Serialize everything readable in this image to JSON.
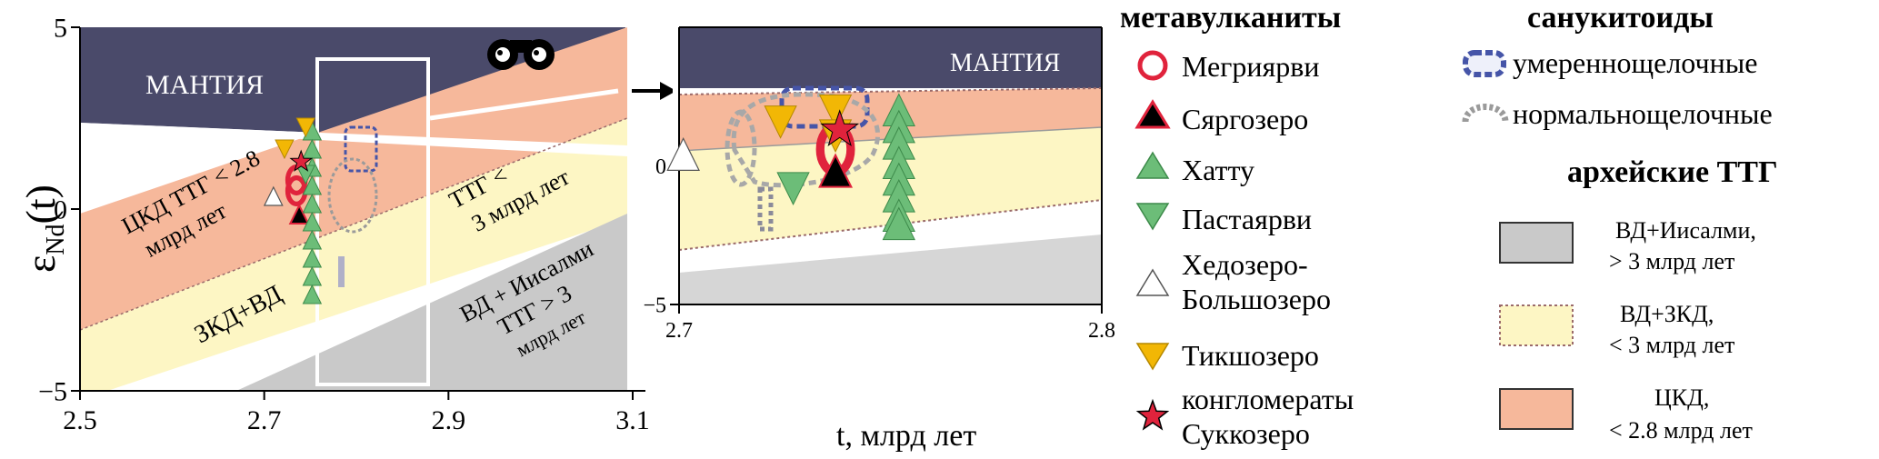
{
  "chart_data": [
    {
      "type": "scatter",
      "panel": "main",
      "title": "",
      "xlabel": "t, млрд лет",
      "ylabel": "ε",
      "ylabel_sub": "Nd",
      "ylabel_suffix": "(t)",
      "xlim": [
        2.5,
        3.1
      ],
      "ylim": [
        -5,
        5
      ],
      "xticks": [
        {
          "v": 2.5,
          "label": "2.5"
        },
        {
          "v": 2.7,
          "label": "2.7"
        },
        {
          "v": 2.9,
          "label": "2.9"
        },
        {
          "v": 3.1,
          "label": "3.1"
        }
      ],
      "yticks": [
        {
          "v": 5,
          "label": "5"
        },
        {
          "v": 0,
          "label": "0"
        },
        {
          "v": -5,
          "label": "−5"
        }
      ],
      "region_labels": [
        {
          "name": "mantle",
          "text": "МАНТИЯ"
        },
        {
          "name": "ckd",
          "line1": "ЦКД ТТГ < 2.8",
          "line2": "млрд лет"
        },
        {
          "name": "ttg3",
          "line1": "ТТГ <",
          "line2": "3 млрд лет"
        },
        {
          "name": "zkd",
          "text": "ЗКД+ВД"
        },
        {
          "name": "vd",
          "line1": "ВД + Иисалми",
          "line2": "ТТГ > 3",
          "line3": "млрд лет"
        }
      ],
      "series": [
        {
          "name": "Мегриярви",
          "symbol": "circle",
          "points": [
            [
              2.735,
              0.8
            ],
            [
              2.735,
              0.5
            ]
          ]
        },
        {
          "name": "Сяргозеро",
          "symbol": "triangle-up",
          "points": [
            [
              2.738,
              -0.2
            ]
          ]
        },
        {
          "name": "Хатту",
          "symbol": "triangle-up",
          "points": [
            [
              2.752,
              2.1
            ],
            [
              2.752,
              1.6
            ],
            [
              2.752,
              1.1
            ],
            [
              2.752,
              0.6
            ],
            [
              2.752,
              0.1
            ],
            [
              2.752,
              -0.4
            ],
            [
              2.752,
              -0.9
            ],
            [
              2.752,
              -1.4
            ],
            [
              2.752,
              -1.9
            ],
            [
              2.752,
              -2.4
            ]
          ]
        },
        {
          "name": "Пастаярви",
          "symbol": "triangle-down",
          "points": [
            [
              2.745,
              1.0
            ]
          ]
        },
        {
          "name": "Хедозеро-Большозеро",
          "symbol": "triangle-up",
          "points": [
            [
              2.71,
              0.3
            ]
          ]
        },
        {
          "name": "Тикшозеро",
          "symbol": "triangle-down",
          "points": [
            [
              2.722,
              1.7
            ],
            [
              2.745,
              2.3
            ]
          ]
        },
        {
          "name": "Суккозеро",
          "symbol": "star",
          "points": [
            [
              2.74,
              1.3
            ]
          ]
        }
      ]
    },
    {
      "type": "scatter",
      "panel": "inset",
      "title": "",
      "xlim": [
        2.7,
        2.8
      ],
      "ylim": [
        -5,
        5
      ],
      "xticks": [
        {
          "v": 2.7,
          "label": "2.7"
        },
        {
          "v": 2.8,
          "label": "2.8"
        }
      ],
      "yticks": [
        {
          "v": 0,
          "label": "0"
        },
        {
          "v": -5,
          "label": "−5"
        }
      ],
      "region_labels": [
        {
          "name": "mantle",
          "text": "МАНТИЯ"
        }
      ],
      "series": [
        {
          "name": "Мегриярви",
          "symbol": "circle",
          "points": [
            [
              2.737,
              0.6
            ]
          ]
        },
        {
          "name": "Сяргозеро",
          "symbol": "triangle-up",
          "points": [
            [
              2.737,
              -0.3
            ]
          ]
        },
        {
          "name": "Хатту",
          "symbol": "triangle-up",
          "points": [
            [
              2.752,
              1.9
            ],
            [
              2.752,
              1.3
            ],
            [
              2.752,
              0.7
            ],
            [
              2.752,
              0.0
            ],
            [
              2.752,
              -0.6
            ],
            [
              2.752,
              -1.2
            ],
            [
              2.752,
              -1.9
            ],
            [
              2.752,
              -2.2
            ]
          ]
        },
        {
          "name": "Пастаярви",
          "symbol": "triangle-down",
          "points": [
            [
              2.727,
              -0.7
            ]
          ]
        },
        {
          "name": "Хедозеро-Большозеро",
          "symbol": "triangle-up",
          "points": [
            [
              2.701,
              0.3
            ]
          ]
        },
        {
          "name": "Тикшозеро",
          "symbol": "triangle-down",
          "points": [
            [
              2.724,
              1.7
            ],
            [
              2.737,
              2.1
            ],
            [
              2.737,
              1.2
            ]
          ]
        },
        {
          "name": "Суккозеро",
          "symbol": "star",
          "points": [
            [
              2.738,
              1.3
            ]
          ]
        }
      ]
    }
  ],
  "legend": {
    "metavolcanites_title": "метавулканиты",
    "items": [
      {
        "label": "Мегриярви",
        "icon": "red-circle-icon"
      },
      {
        "label": "Сяргозеро",
        "icon": "black-triangle-icon"
      },
      {
        "label": "Хатту",
        "icon": "green-triangle-up-icon"
      },
      {
        "label": "Пастаярви",
        "icon": "green-triangle-down-icon"
      },
      {
        "label_line1": "Хедозеро-",
        "label_line2": "Большозеро",
        "icon": "white-triangle-icon"
      },
      {
        "label": "Тикшозеро",
        "icon": "yellow-triangle-down-icon"
      },
      {
        "label_line1": "конгломераты",
        "label_line2": "Суккозеро",
        "icon": "red-star-icon"
      }
    ],
    "sanukitoids_title": "санукитоиды",
    "sanukitoids": [
      {
        "label": "умереннощелочные",
        "icon": "blue-dashed-oval-icon"
      },
      {
        "label": "нормальнощелочные",
        "icon": "gray-dashed-oval-icon"
      }
    ],
    "ttg_title": "архейские ТТГ",
    "ttg": [
      {
        "line1": "ВД+Иисалми,",
        "line2": "> 3 млрд лет",
        "icon": "gray-box-icon"
      },
      {
        "line1": "ВД+ЗКД,",
        "line2": "< 3 млрд лет",
        "icon": "yellow-box-icon"
      },
      {
        "line1": "ЦКД,",
        "line2": "< 2.8 млрд лет",
        "icon": "salmon-box-icon"
      }
    ]
  },
  "colors": {
    "mantle": "#4a4a6a",
    "ckd": "#f6b89b",
    "ttg_yellow": "#fdf6c4",
    "old_ttg": "#c9c9c9",
    "green": "#6cbd78",
    "yellow": "#f2b705",
    "red": "#e0233c",
    "blue": "#4655a8"
  }
}
